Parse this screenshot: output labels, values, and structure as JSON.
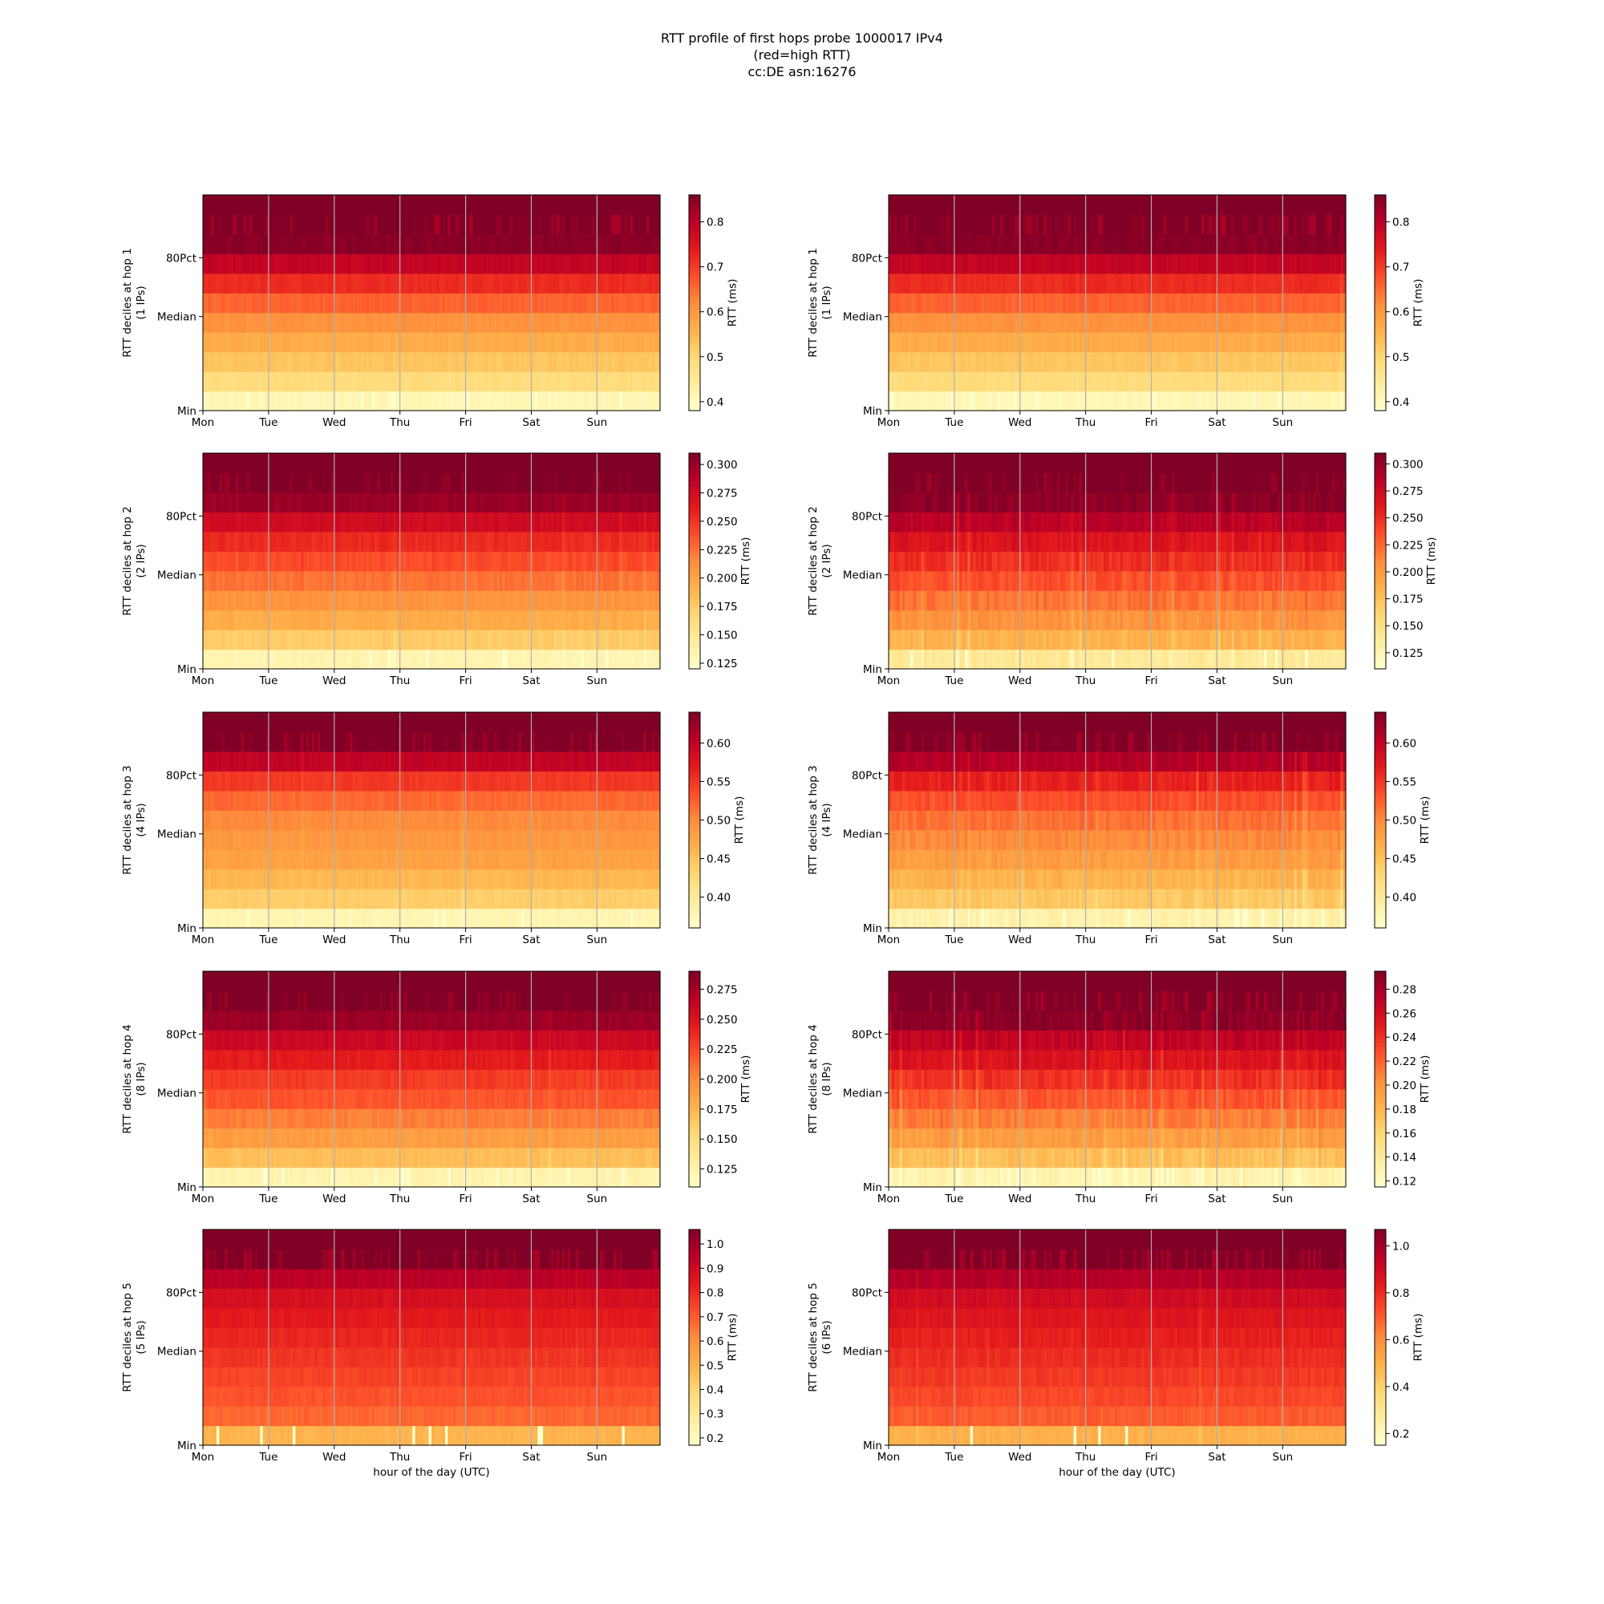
{
  "figure": {
    "title_lines": [
      "RTT profile of first hops probe 1000017 IPv4",
      "(red=high RTT)",
      "cc:DE asn:16276"
    ]
  },
  "chart_data": {
    "type": "heatmap",
    "colormap": "YlOrRd",
    "x_tick_labels": [
      "Mon",
      "Tue",
      "Wed",
      "Thu",
      "Fri",
      "Sat",
      "Sun"
    ],
    "y_tick_labels": [
      "Min",
      "Median",
      "80Pct"
    ],
    "xlabel": "hour of the day (UTC)",
    "colorbar_label": "RTT (ms)",
    "grid": "vertical lines at day boundaries",
    "panels": [
      {
        "row": 1,
        "col": 1,
        "ylabel": "RTT deciles at hop 1\n(1 IPs)",
        "colorbar_ticks": [
          "0.4",
          "0.5",
          "0.6",
          "0.7",
          "0.8"
        ],
        "vmin": 0.38,
        "vmax": 0.86,
        "band_means": [
          0.41,
          0.49,
          0.53,
          0.57,
          0.61,
          0.66,
          0.72,
          0.79,
          0.85,
          0.87,
          0.87
        ],
        "variability": 0.5
      },
      {
        "row": 1,
        "col": 2,
        "ylabel": "RTT deciles at hop 1\n(1 IPs)",
        "colorbar_ticks": [
          "0.4",
          "0.5",
          "0.6",
          "0.7",
          "0.8"
        ],
        "vmin": 0.38,
        "vmax": 0.86,
        "band_means": [
          0.41,
          0.49,
          0.53,
          0.57,
          0.61,
          0.66,
          0.72,
          0.79,
          0.85,
          0.87,
          0.87
        ],
        "variability": 0.5
      },
      {
        "row": 2,
        "col": 1,
        "ylabel": "RTT deciles at hop 2\n(2 IPs)",
        "colorbar_ticks": [
          "0.125",
          "0.150",
          "0.175",
          "0.200",
          "0.225",
          "0.250",
          "0.275",
          "0.300"
        ],
        "vmin": 0.12,
        "vmax": 0.31,
        "band_means": [
          0.135,
          0.175,
          0.195,
          0.21,
          0.225,
          0.24,
          0.255,
          0.275,
          0.3,
          0.32,
          0.32
        ],
        "variability": 0.6
      },
      {
        "row": 2,
        "col": 2,
        "ylabel": "RTT deciles at hop 2\n(2 IPs)",
        "colorbar_ticks": [
          "0.125",
          "0.150",
          "0.175",
          "0.200",
          "0.225",
          "0.250",
          "0.275",
          "0.300"
        ],
        "vmin": 0.11,
        "vmax": 0.31,
        "band_means": [
          0.14,
          0.185,
          0.205,
          0.22,
          0.235,
          0.25,
          0.265,
          0.285,
          0.305,
          0.32,
          0.32
        ],
        "variability": 1.0
      },
      {
        "row": 3,
        "col": 1,
        "ylabel": "RTT deciles at hop 3\n(4 IPs)",
        "colorbar_ticks": [
          "0.40",
          "0.45",
          "0.50",
          "0.55",
          "0.60"
        ],
        "vmin": 0.36,
        "vmax": 0.64,
        "band_means": [
          0.38,
          0.44,
          0.46,
          0.48,
          0.49,
          0.5,
          0.52,
          0.55,
          0.6,
          0.65,
          0.65
        ],
        "variability": 0.5
      },
      {
        "row": 3,
        "col": 2,
        "ylabel": "RTT deciles at hop 3\n(4 IPs)",
        "colorbar_ticks": [
          "0.40",
          "0.45",
          "0.50",
          "0.55",
          "0.60"
        ],
        "vmin": 0.36,
        "vmax": 0.64,
        "band_means": [
          0.385,
          0.445,
          0.465,
          0.485,
          0.5,
          0.515,
          0.535,
          0.565,
          0.61,
          0.65,
          0.65
        ],
        "variability": 0.9
      },
      {
        "row": 4,
        "col": 1,
        "ylabel": "RTT deciles at hop 4\n(8 IPs)",
        "colorbar_ticks": [
          "0.125",
          "0.150",
          "0.175",
          "0.200",
          "0.225",
          "0.250",
          "0.275"
        ],
        "vmin": 0.11,
        "vmax": 0.29,
        "band_means": [
          0.125,
          0.17,
          0.19,
          0.205,
          0.22,
          0.23,
          0.245,
          0.26,
          0.28,
          0.3,
          0.3
        ],
        "variability": 0.6
      },
      {
        "row": 4,
        "col": 2,
        "ylabel": "RTT deciles at hop 4\n(8 IPs)",
        "colorbar_ticks": [
          "0.12",
          "0.14",
          "0.16",
          "0.18",
          "0.20",
          "0.22",
          "0.24",
          "0.26",
          "0.28"
        ],
        "vmin": 0.115,
        "vmax": 0.295,
        "band_means": [
          0.13,
          0.175,
          0.195,
          0.21,
          0.225,
          0.24,
          0.255,
          0.27,
          0.29,
          0.3,
          0.3
        ],
        "variability": 1.0
      },
      {
        "row": 5,
        "col": 1,
        "ylabel": "RTT deciles at hop 5\n(5 IPs)",
        "colorbar_ticks": [
          "0.2",
          "0.3",
          "0.4",
          "0.5",
          "0.6",
          "0.7",
          "0.8",
          "0.9",
          "1.0"
        ],
        "vmin": 0.17,
        "vmax": 1.06,
        "band_means": [
          0.5,
          0.68,
          0.72,
          0.75,
          0.78,
          0.81,
          0.84,
          0.88,
          0.95,
          1.08,
          1.08
        ],
        "variability": 0.5
      },
      {
        "row": 5,
        "col": 2,
        "ylabel": "RTT deciles at hop 5\n(6 IPs)",
        "colorbar_ticks": [
          "0.2",
          "0.4",
          "0.6",
          "0.8",
          "1.0"
        ],
        "vmin": 0.15,
        "vmax": 1.07,
        "band_means": [
          0.5,
          0.7,
          0.74,
          0.77,
          0.8,
          0.83,
          0.86,
          0.9,
          0.97,
          1.08,
          1.08
        ],
        "variability": 0.6
      }
    ]
  }
}
